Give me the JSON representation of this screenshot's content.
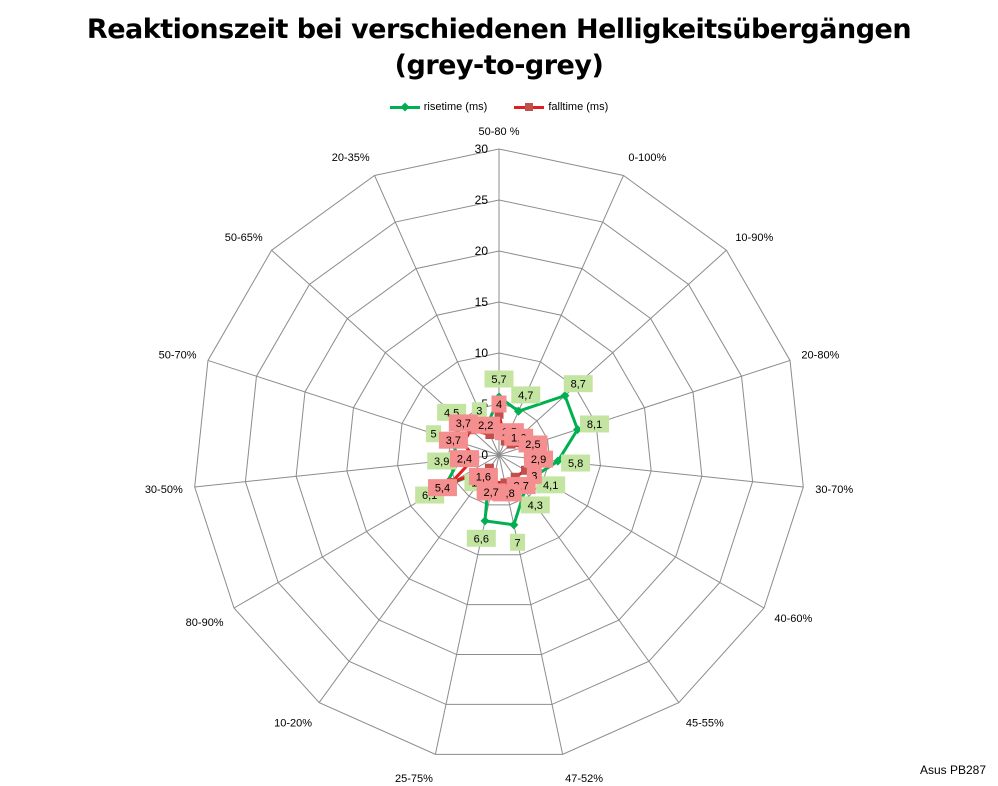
{
  "title_line1": "Reaktionszeit bei verschiedenen Helligkeitsübergängen",
  "title_line2": "(grey-to-grey)",
  "footer": "Asus PB287",
  "chart_data": {
    "type": "radar",
    "categories": [
      "50-80 %",
      "0-100%",
      "10-90%",
      "20-80%",
      "30-70%",
      "40-60%",
      "45-55%",
      "47-52%",
      "25-75%",
      "10-20%",
      "80-90%",
      "30-50%",
      "50-70%",
      "50-65%",
      "20-35%"
    ],
    "series": [
      {
        "name": "risetime (ms)",
        "color": "#00B050",
        "label_bg": "#C4E5A1",
        "marker": "diamond",
        "values": [
          5.7,
          4.7,
          8.7,
          8.1,
          5.8,
          4.1,
          4.3,
          7,
          6.6,
          1.6,
          6.1,
          3.9,
          5,
          4.5,
          3
        ],
        "labels": [
          "5,7",
          "4,7",
          "8,7",
          "8,1",
          "5,8",
          "4,1",
          "4,3",
          "7",
          "6,6",
          "1,6",
          "6,1",
          "3,9",
          "5",
          "4,5",
          "3"
        ]
      },
      {
        "name": "falltime (ms)",
        "color": "#C0504D",
        "line_color": "#E02020",
        "label_bg": "#F58E8E",
        "marker": "square",
        "values": [
          4,
          1.5,
          1.6,
          2.5,
          2.9,
          3,
          2.7,
          2.8,
          2.7,
          1.6,
          5.4,
          2.4,
          3.7,
          3.7,
          2.2
        ],
        "labels": [
          "4",
          "1,5",
          "1,6",
          "2,5",
          "2,9",
          "3",
          "2,7",
          "2,8",
          "2,7",
          "1,6",
          "5,4",
          "2,4",
          "3,7",
          "3,7",
          "2,2"
        ]
      }
    ],
    "rlim": [
      0,
      30
    ],
    "r_ticks": [
      0,
      5,
      10,
      15,
      20,
      25,
      30
    ],
    "grid": true,
    "legend_position": "top"
  }
}
